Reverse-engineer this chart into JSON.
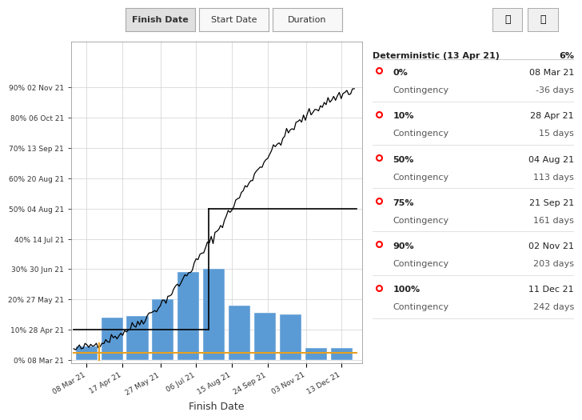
{
  "tab_labels": [
    "Finish Date",
    "Start Date",
    "Duration"
  ],
  "xlabel": "Finish Date",
  "bar_color": "#5b9bd5",
  "background_color": "#ffffff",
  "grid_color": "#d0d0d0",
  "x_tick_labels": [
    "08 Mar 21",
    "17 Apr 21",
    "27 May 21",
    "06 Jul 21",
    "15 Aug 21",
    "24 Sep 21",
    "03 Nov 21",
    "13 Dec 21"
  ],
  "bar_positions": [
    0,
    1,
    2,
    3,
    4,
    5,
    6,
    7,
    8,
    9,
    10
  ],
  "bar_heights": [
    4.5,
    14.0,
    14.5,
    20.0,
    29.0,
    30.0,
    18.0,
    15.5,
    15.0,
    4.0,
    4.0
  ],
  "y_tick_positions": [
    0,
    10,
    20,
    30,
    40,
    50,
    60,
    70,
    80,
    90
  ],
  "y_tick_labels": [
    "0% 08 Mar 21",
    "10% 28 Apr 21",
    "20% 27 May 21",
    "30% 30 Jun 21",
    "40% 14 Jul 21",
    "50% 04 Aug 21",
    "60% 20 Aug 21",
    "70% 13 Sep 21",
    "80% 06 Oct 21",
    "90% 02 Nov 21"
  ],
  "percentile_labels": [
    {
      "pct": "0%",
      "date": "08 Mar 21",
      "contingency": "-36 days"
    },
    {
      "pct": "10%",
      "date": "28 Apr 21",
      "contingency": "15 days"
    },
    {
      "pct": "50%",
      "date": "04 Aug 21",
      "contingency": "113 days"
    },
    {
      "pct": "75%",
      "date": "21 Sep 21",
      "contingency": "161 days"
    },
    {
      "pct": "90%",
      "date": "02 Nov 21",
      "contingency": "203 days"
    },
    {
      "pct": "100%",
      "date": "11 Dec 21",
      "contingency": "242 days"
    }
  ],
  "deterministic_label": "Deterministic (13 Apr 21)",
  "deterministic_pct": "6%"
}
